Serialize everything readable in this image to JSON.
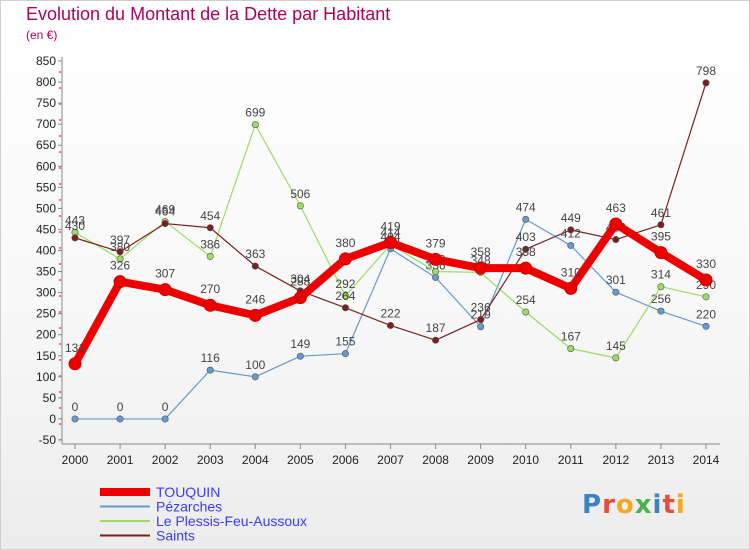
{
  "title": "Evolution du Montant de la Dette par Habitant",
  "subtitle": "(en €)",
  "logo": "Proxiti",
  "chart_data": {
    "type": "line",
    "x": [
      2000,
      2001,
      2002,
      2003,
      2004,
      2005,
      2006,
      2007,
      2008,
      2009,
      2010,
      2011,
      2012,
      2013,
      2014
    ],
    "ylim": [
      -50,
      850
    ],
    "yticks": [
      -50,
      0,
      50,
      100,
      150,
      200,
      250,
      300,
      350,
      400,
      450,
      500,
      550,
      600,
      650,
      700,
      750,
      800,
      850
    ],
    "grid": false,
    "legend_position": "bottom",
    "series": [
      {
        "name": "TOUQUIN",
        "color": "#ee0000",
        "values": [
          131,
          326,
          307,
          270,
          246,
          288,
          380,
          419,
          379,
          358,
          358,
          310,
          463,
          395,
          330
        ]
      },
      {
        "name": "Pézarches",
        "color": "#6699cc",
        "values": [
          0,
          0,
          0,
          116,
          100,
          149,
          155,
          404,
          336,
          219,
          474,
          412,
          301,
          256,
          220
        ]
      },
      {
        "name": "Le Plessis-Feu-Aussoux",
        "color": "#99dd66",
        "values": [
          443,
          380,
          469,
          386,
          699,
          506,
          292,
          414,
          350,
          348,
          254,
          167,
          145,
          314,
          290
        ]
      },
      {
        "name": "Saints",
        "color": "#7a2020",
        "values": [
          430,
          397,
          464,
          454,
          363,
          304,
          264,
          222,
          187,
          236,
          403,
          449,
          426,
          461,
          798
        ]
      }
    ]
  }
}
